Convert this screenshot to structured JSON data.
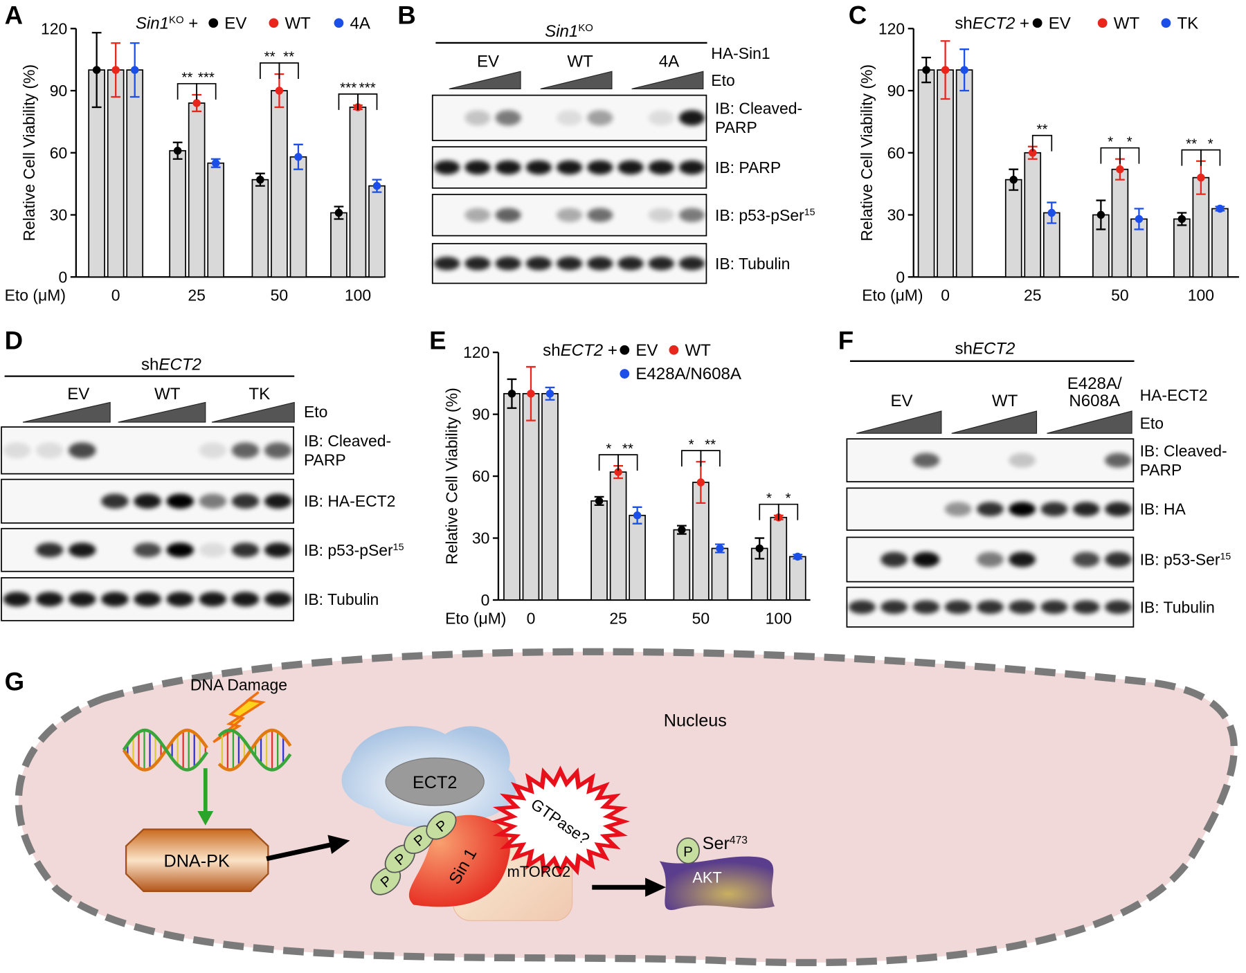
{
  "chart_data": [
    {
      "type": "bar",
      "panel": "A",
      "ylabel": "Relative Cell Viability (%)",
      "xlabel": "Eto (μM)",
      "legend_title": [
        {
          "text": "Sin1",
          "style": "italic"
        },
        {
          "text": "KO",
          "style": "sup"
        },
        {
          "text": " +",
          "style": "normal"
        }
      ],
      "categories": [
        "0",
        "25",
        "50",
        "100"
      ],
      "series": [
        {
          "name": "EV",
          "color": "#000000",
          "values": [
            100,
            61,
            47,
            31
          ],
          "errors": [
            18,
            4,
            3,
            3
          ]
        },
        {
          "name": "WT",
          "color": "#e8261c",
          "values": [
            100,
            84,
            90,
            82
          ],
          "errors": [
            13,
            4,
            8,
            1
          ]
        },
        {
          "name": "4A",
          "color": "#1c4fe8",
          "values": [
            100,
            55,
            58,
            44
          ],
          "errors": [
            13,
            2,
            6,
            3
          ]
        }
      ],
      "ylim": [
        0,
        120
      ],
      "yticks": [
        0,
        30,
        60,
        90,
        120
      ],
      "significance": [
        [
          null,
          null
        ],
        [
          "**",
          "***"
        ],
        [
          "**",
          "**"
        ],
        [
          "***",
          "***"
        ]
      ]
    },
    {
      "type": "bar",
      "panel": "C",
      "ylabel": "Relative Cell Viability (%)",
      "xlabel": "Eto (μM)",
      "legend_title": [
        {
          "text": "sh",
          "style": "normal"
        },
        {
          "text": "ECT2",
          "style": "italic"
        },
        {
          "text": " +",
          "style": "normal"
        }
      ],
      "categories": [
        "0",
        "25",
        "50",
        "100"
      ],
      "series": [
        {
          "name": "EV",
          "color": "#000000",
          "values": [
            100,
            47,
            30,
            28
          ],
          "errors": [
            6,
            5,
            7,
            3
          ]
        },
        {
          "name": "WT",
          "color": "#e8261c",
          "values": [
            100,
            60,
            52,
            48
          ],
          "errors": [
            14,
            3,
            5,
            8
          ]
        },
        {
          "name": "TK",
          "color": "#1c4fe8",
          "values": [
            100,
            31,
            28,
            33
          ],
          "errors": [
            10,
            5,
            5,
            1
          ]
        }
      ],
      "ylim": [
        0,
        120
      ],
      "yticks": [
        0,
        30,
        60,
        90,
        120
      ],
      "significance": [
        [
          null,
          null
        ],
        [
          null,
          "**"
        ],
        [
          "*",
          "*"
        ],
        [
          "**",
          "*"
        ]
      ]
    },
    {
      "type": "bar",
      "panel": "E",
      "ylabel": "Relative Cell Viability (%)",
      "xlabel": "Eto (μM)",
      "legend_title": [
        {
          "text": "sh",
          "style": "normal"
        },
        {
          "text": "ECT2",
          "style": "italic"
        },
        {
          "text": " +",
          "style": "normal"
        }
      ],
      "categories": [
        "0",
        "25",
        "50",
        "100"
      ],
      "series": [
        {
          "name": "EV",
          "color": "#000000",
          "values": [
            100,
            48,
            34,
            25
          ],
          "errors": [
            7,
            2,
            2,
            5
          ]
        },
        {
          "name": "WT",
          "color": "#e8261c",
          "values": [
            100,
            62,
            57,
            40
          ],
          "errors": [
            13,
            3,
            10,
            1
          ]
        },
        {
          "name": "E428A/N608A",
          "color": "#1c4fe8",
          "values": [
            100,
            41,
            25,
            21
          ],
          "errors": [
            3,
            4,
            2,
            1
          ]
        }
      ],
      "ylim": [
        0,
        120
      ],
      "yticks": [
        0,
        30,
        60,
        90,
        120
      ],
      "significance": [
        [
          null,
          null
        ],
        [
          "*",
          "**"
        ],
        [
          "*",
          "**"
        ],
        [
          "*",
          "*"
        ]
      ]
    }
  ],
  "blots": [
    {
      "panel": "B",
      "header": [
        {
          "text": "Sin1",
          "style": "italic"
        },
        {
          "text": "KO",
          "style": "sup"
        }
      ],
      "groups": [
        [
          "EV"
        ],
        [
          "WT"
        ],
        [
          "4A"
        ]
      ],
      "group_label": "HA-Sin1",
      "treatment": "Eto",
      "rows": [
        [
          [
            {
              "text": "IB: Cleaved-",
              "style": "normal"
            }
          ],
          [
            {
              "text": "PARP",
              "style": "normal"
            }
          ]
        ],
        [
          [
            {
              "text": "IB: PARP",
              "style": "normal"
            }
          ]
        ],
        [
          [
            {
              "text": "IB: p53-pSer",
              "style": "normal"
            },
            {
              "text": "15",
              "style": "sup"
            }
          ]
        ],
        [
          [
            {
              "text": "IB: Tubulin",
              "style": "normal"
            }
          ]
        ]
      ]
    },
    {
      "panel": "D",
      "header": [
        {
          "text": "sh",
          "style": "normal"
        },
        {
          "text": "ECT2",
          "style": "italic"
        }
      ],
      "groups": [
        [
          "EV"
        ],
        [
          "WT"
        ],
        [
          "TK"
        ]
      ],
      "group_label": null,
      "treatment": "Eto",
      "rows": [
        [
          [
            {
              "text": "IB: Cleaved-",
              "style": "normal"
            }
          ],
          [
            {
              "text": "PARP",
              "style": "normal"
            }
          ]
        ],
        [
          [
            {
              "text": "IB: HA-ECT2",
              "style": "normal"
            }
          ]
        ],
        [
          [
            {
              "text": "IB: p53-pSer",
              "style": "normal"
            },
            {
              "text": "15",
              "style": "sup"
            }
          ]
        ],
        [
          [
            {
              "text": "IB: Tubulin",
              "style": "normal"
            }
          ]
        ]
      ]
    },
    {
      "panel": "F",
      "header": [
        {
          "text": "sh",
          "style": "normal"
        },
        {
          "text": "ECT2",
          "style": "italic"
        }
      ],
      "groups": [
        [
          "EV"
        ],
        [
          "WT"
        ],
        [
          "E428A/",
          "N608A"
        ]
      ],
      "group_label": "HA-ECT2",
      "treatment": "Eto",
      "rows": [
        [
          [
            {
              "text": "IB: Cleaved-",
              "style": "normal"
            }
          ],
          [
            {
              "text": "PARP",
              "style": "normal"
            }
          ]
        ],
        [
          [
            {
              "text": "IB: HA",
              "style": "normal"
            }
          ]
        ],
        [
          [
            {
              "text": "IB: p53-Ser",
              "style": "normal"
            },
            {
              "text": "15",
              "style": "sup"
            }
          ]
        ],
        [
          [
            {
              "text": "IB: Tubulin",
              "style": "normal"
            }
          ]
        ]
      ]
    }
  ],
  "diagram": {
    "panel": "G",
    "stimulus": "DNA Damage",
    "compartment": "Nucleus",
    "kinase": "DNA-PK",
    "gef": "ECT2",
    "gtpase": "GTPase?",
    "adaptor": "Sin 1",
    "complex": "mTORC2",
    "target": "AKT",
    "phospho_sites": [
      "P",
      "P",
      "P",
      "P",
      "P"
    ],
    "site": [
      {
        "text": "Ser",
        "style": "normal"
      },
      {
        "text": "473",
        "style": "sup"
      }
    ]
  }
}
